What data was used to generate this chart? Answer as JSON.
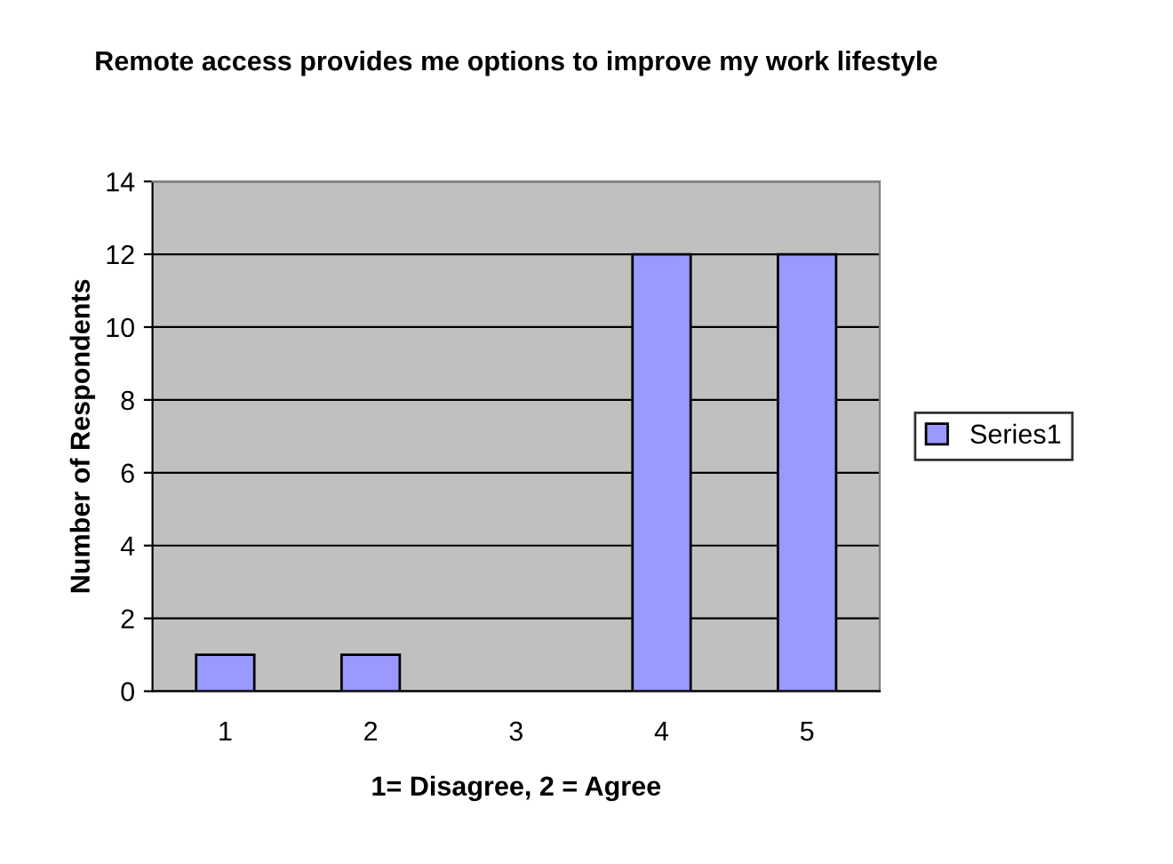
{
  "chart_data": {
    "type": "bar",
    "title": "Remote access provides me options to improve my work lifestyle",
    "xlabel": "1= Disagree, 2 = Agree",
    "ylabel": "Number of Respondents",
    "categories": [
      "1",
      "2",
      "3",
      "4",
      "5"
    ],
    "series": [
      {
        "name": "Series1",
        "color": "#9999ff",
        "values": [
          1,
          1,
          null,
          12,
          12
        ]
      }
    ],
    "ylim": [
      0,
      14
    ],
    "yticks": [
      0,
      2,
      4,
      6,
      8,
      10,
      12,
      14
    ],
    "grid": "y",
    "legend": "right"
  }
}
